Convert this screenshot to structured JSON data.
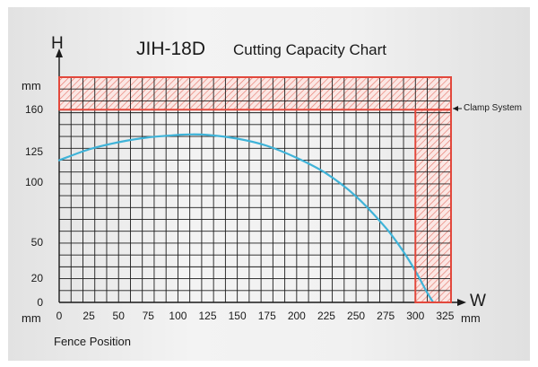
{
  "chart_data": {
    "type": "line",
    "title": "JIH-18D",
    "subtitle": "Cutting Capacity Chart",
    "y_axis_letter": "H",
    "x_axis_letter": "W",
    "y_unit": "mm",
    "x_unit_left": "mm",
    "x_unit_right": "mm",
    "xlabel": "Fence Position",
    "annotation": "Clamp System",
    "x_ticks": [
      0,
      25,
      50,
      75,
      100,
      125,
      150,
      175,
      200,
      225,
      250,
      275,
      300,
      325
    ],
    "y_ticks": [
      0,
      20,
      50,
      100,
      125,
      160
    ],
    "xlim": [
      0,
      330
    ],
    "ylim": [
      0,
      187
    ],
    "grid": true,
    "clamp_zone": {
      "h_from": 160,
      "w_from": 300
    },
    "series": [
      {
        "color": "#3fb3d8",
        "x": [
          0,
          25,
          50,
          75,
          100,
          110,
          125,
          150,
          175,
          200,
          225,
          250,
          275,
          290,
          300,
          310,
          315
        ],
        "y": [
          118,
          127,
          133,
          137,
          139,
          139.5,
          139,
          136,
          130,
          120,
          107,
          88,
          62,
          42,
          26,
          8,
          0
        ]
      }
    ]
  }
}
